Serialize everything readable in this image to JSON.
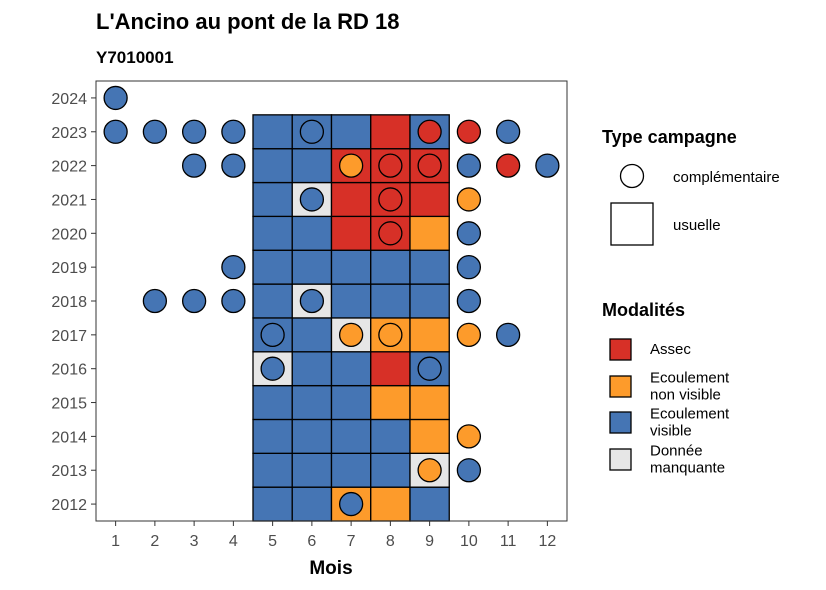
{
  "chart_data": {
    "type": "heatmap",
    "title": "L'Ancino au pont de la RD 18",
    "subtitle": "Y7010001",
    "xlabel": "Mois",
    "ylabel": "",
    "x_ticks": [
      "1",
      "2",
      "3",
      "4",
      "5",
      "6",
      "7",
      "8",
      "9",
      "10",
      "11",
      "12"
    ],
    "y_ticks": [
      "2012",
      "2013",
      "2014",
      "2015",
      "2016",
      "2017",
      "2018",
      "2019",
      "2020",
      "2021",
      "2022",
      "2023",
      "2024"
    ],
    "xlim": [
      0.5,
      12.5
    ],
    "ylim": [
      2011.5,
      2024.5
    ],
    "legend_shape": {
      "title": "Type campagne",
      "entries": [
        {
          "shape": "circle",
          "label": "complémentaire"
        },
        {
          "shape": "square",
          "label": "usuelle"
        }
      ]
    },
    "legend_color": {
      "title": "Modalités",
      "entries": [
        {
          "key": "assec",
          "label_lines": [
            "Assec"
          ],
          "color": "#d73027"
        },
        {
          "key": "ecnv",
          "label_lines": [
            "Ecoulement",
            "non visible"
          ],
          "color": "#fd9b2b"
        },
        {
          "key": "ecv",
          "label_lines": [
            "Ecoulement",
            "visible"
          ],
          "color": "#4575b4"
        },
        {
          "key": "nd",
          "label_lines": [
            "Donnée",
            "manquante"
          ],
          "color": "#e6e6e6"
        }
      ]
    },
    "usuelle": {
      "months": [
        5,
        6,
        7,
        8,
        9
      ],
      "rows": [
        {
          "year": 2012,
          "values": [
            "ecv",
            "ecv",
            "ecnv",
            "ecnv",
            "ecv"
          ]
        },
        {
          "year": 2013,
          "values": [
            "ecv",
            "ecv",
            "ecv",
            "ecv",
            "nd"
          ]
        },
        {
          "year": 2014,
          "values": [
            "ecv",
            "ecv",
            "ecv",
            "ecv",
            "ecnv"
          ]
        },
        {
          "year": 2015,
          "values": [
            "ecv",
            "ecv",
            "ecv",
            "ecnv",
            "ecnv"
          ]
        },
        {
          "year": 2016,
          "values": [
            "nd",
            "ecv",
            "ecv",
            "assec",
            "ecv"
          ]
        },
        {
          "year": 2017,
          "values": [
            "ecv",
            "ecv",
            "nd",
            "ecnv",
            "ecnv"
          ]
        },
        {
          "year": 2018,
          "values": [
            "ecv",
            "nd",
            "ecv",
            "ecv",
            "ecv"
          ]
        },
        {
          "year": 2019,
          "values": [
            "ecv",
            "ecv",
            "ecv",
            "ecv",
            "ecv"
          ]
        },
        {
          "year": 2020,
          "values": [
            "ecv",
            "ecv",
            "assec",
            "assec",
            "ecnv"
          ]
        },
        {
          "year": 2021,
          "values": [
            "ecv",
            "nd",
            "assec",
            "assec",
            "assec"
          ]
        },
        {
          "year": 2022,
          "values": [
            "ecv",
            "ecv",
            "assec",
            "assec",
            "assec"
          ]
        },
        {
          "year": 2023,
          "values": [
            "ecv",
            "ecv",
            "ecv",
            "assec",
            "ecv"
          ]
        }
      ]
    },
    "complementaire": [
      {
        "year": 2024,
        "month": 1,
        "value": "ecv"
      },
      {
        "year": 2023,
        "month": 1,
        "value": "ecv"
      },
      {
        "year": 2023,
        "month": 2,
        "value": "ecv"
      },
      {
        "year": 2023,
        "month": 3,
        "value": "ecv"
      },
      {
        "year": 2023,
        "month": 4,
        "value": "ecv"
      },
      {
        "year": 2023,
        "month": 6,
        "value": "ecv"
      },
      {
        "year": 2023,
        "month": 9,
        "value": "assec"
      },
      {
        "year": 2023,
        "month": 10,
        "value": "assec"
      },
      {
        "year": 2023,
        "month": 11,
        "value": "ecv"
      },
      {
        "year": 2022,
        "month": 3,
        "value": "ecv"
      },
      {
        "year": 2022,
        "month": 4,
        "value": "ecv"
      },
      {
        "year": 2022,
        "month": 7,
        "value": "ecnv"
      },
      {
        "year": 2022,
        "month": 8,
        "value": "assec"
      },
      {
        "year": 2022,
        "month": 9,
        "value": "assec"
      },
      {
        "year": 2022,
        "month": 10,
        "value": "ecv"
      },
      {
        "year": 2022,
        "month": 11,
        "value": "assec"
      },
      {
        "year": 2022,
        "month": 12,
        "value": "ecv"
      },
      {
        "year": 2021,
        "month": 6,
        "value": "ecv"
      },
      {
        "year": 2021,
        "month": 8,
        "value": "assec"
      },
      {
        "year": 2021,
        "month": 10,
        "value": "ecnv"
      },
      {
        "year": 2020,
        "month": 8,
        "value": "assec"
      },
      {
        "year": 2020,
        "month": 10,
        "value": "ecv"
      },
      {
        "year": 2019,
        "month": 4,
        "value": "ecv"
      },
      {
        "year": 2019,
        "month": 10,
        "value": "ecv"
      },
      {
        "year": 2018,
        "month": 2,
        "value": "ecv"
      },
      {
        "year": 2018,
        "month": 3,
        "value": "ecv"
      },
      {
        "year": 2018,
        "month": 4,
        "value": "ecv"
      },
      {
        "year": 2018,
        "month": 6,
        "value": "ecv"
      },
      {
        "year": 2018,
        "month": 10,
        "value": "ecv"
      },
      {
        "year": 2017,
        "month": 5,
        "value": "ecv"
      },
      {
        "year": 2017,
        "month": 7,
        "value": "ecnv"
      },
      {
        "year": 2017,
        "month": 8,
        "value": "ecnv"
      },
      {
        "year": 2017,
        "month": 10,
        "value": "ecnv"
      },
      {
        "year": 2017,
        "month": 11,
        "value": "ecv"
      },
      {
        "year": 2016,
        "month": 5,
        "value": "ecv"
      },
      {
        "year": 2016,
        "month": 9,
        "value": "ecv"
      },
      {
        "year": 2014,
        "month": 10,
        "value": "ecnv"
      },
      {
        "year": 2013,
        "month": 9,
        "value": "ecnv"
      },
      {
        "year": 2013,
        "month": 10,
        "value": "ecv"
      },
      {
        "year": 2012,
        "month": 7,
        "value": "ecv"
      }
    ]
  }
}
